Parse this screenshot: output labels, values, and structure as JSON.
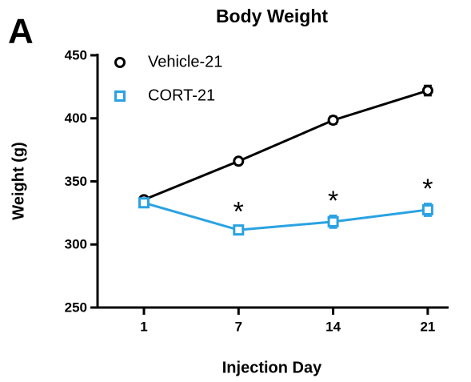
{
  "chart_data": {
    "type": "line",
    "panel_label": "A",
    "title": "Body Weight",
    "x_label": "Injection Day",
    "y_label": "Weight (g)",
    "categories": [
      "1",
      "7",
      "14",
      "21"
    ],
    "series": [
      {
        "name": "Vehicle-21",
        "color": "#000000",
        "marker": "circle",
        "values": [
          335.5,
          366,
          398.5,
          422
        ],
        "errors": [
          2,
          2,
          3,
          4
        ]
      },
      {
        "name": "CORT-21",
        "color": "#2aa2e2",
        "marker": "square",
        "values": [
          333,
          311.5,
          318,
          327.5
        ],
        "errors": [
          2,
          3,
          5,
          5
        ]
      }
    ],
    "annotations": [
      {
        "text": "*",
        "x": "7"
      },
      {
        "text": "*",
        "x": "14"
      },
      {
        "text": "*",
        "x": "21"
      }
    ],
    "ylim": [
      250,
      450
    ],
    "yticks": [
      250,
      300,
      350,
      400,
      450
    ],
    "legend": "upper left"
  }
}
